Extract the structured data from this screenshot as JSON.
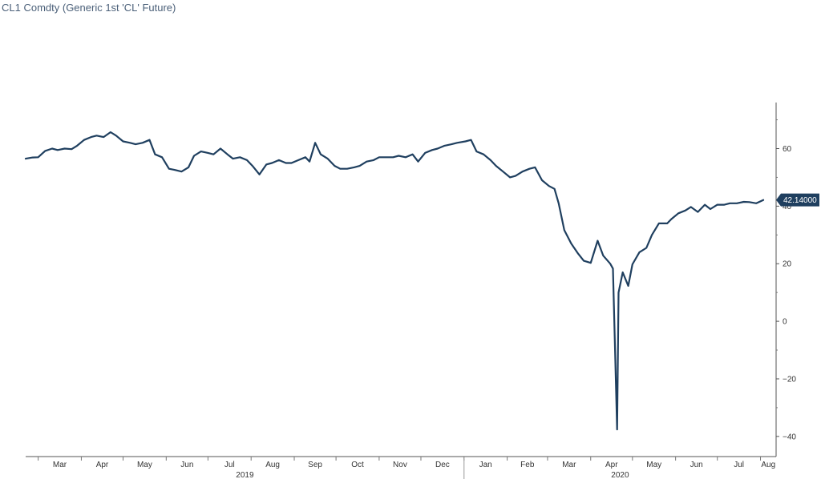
{
  "chart_data": {
    "type": "line",
    "title": "CL1 Comdty (Generic 1st 'CL' Future)",
    "xlabel": "",
    "ylabel": "",
    "ylim": [
      -47,
      76
    ],
    "y_ticks": [
      60,
      40,
      20,
      0,
      -20,
      -40
    ],
    "y_tick_labels": [
      "60",
      "40",
      "20",
      "0",
      "−20",
      "−40"
    ],
    "month_labels": [
      "Mar",
      "Apr",
      "May",
      "Jun",
      "Jul",
      "Aug",
      "Sep",
      "Oct",
      "Nov",
      "Dec",
      "Jan",
      "Feb",
      "Mar",
      "Apr",
      "May",
      "Jun",
      "Jul",
      "Aug"
    ],
    "year_labels": [
      "2019",
      "2020"
    ],
    "last_value_label": "42.14000",
    "legend": "none",
    "grid": false,
    "line_color": "#1f3f5f",
    "series": [
      {
        "x": [
          "2019-02-20",
          "2019-02-25",
          "2019-03-01",
          "2019-03-06",
          "2019-03-11",
          "2019-03-15",
          "2019-03-20",
          "2019-03-25",
          "2019-03-29",
          "2019-04-03",
          "2019-04-08",
          "2019-04-12",
          "2019-04-17",
          "2019-04-22",
          "2019-04-26",
          "2019-05-01",
          "2019-05-06",
          "2019-05-10",
          "2019-05-15",
          "2019-05-20",
          "2019-05-24",
          "2019-05-29",
          "2019-06-03",
          "2019-06-07",
          "2019-06-12",
          "2019-06-17",
          "2019-06-21",
          "2019-06-26",
          "2019-07-01",
          "2019-07-05",
          "2019-07-10",
          "2019-07-15",
          "2019-07-19",
          "2019-07-24",
          "2019-07-29",
          "2019-08-02",
          "2019-08-07",
          "2019-08-12",
          "2019-08-16",
          "2019-08-21",
          "2019-08-26",
          "2019-08-30",
          "2019-09-04",
          "2019-09-09",
          "2019-09-12",
          "2019-09-16",
          "2019-09-20",
          "2019-09-25",
          "2019-09-30",
          "2019-10-04",
          "2019-10-09",
          "2019-10-14",
          "2019-10-18",
          "2019-10-23",
          "2019-10-28",
          "2019-11-01",
          "2019-11-06",
          "2019-11-11",
          "2019-11-15",
          "2019-11-20",
          "2019-11-25",
          "2019-11-29",
          "2019-12-04",
          "2019-12-09",
          "2019-12-13",
          "2019-12-18",
          "2019-12-23",
          "2019-12-27",
          "2020-01-02",
          "2020-01-06",
          "2020-01-10",
          "2020-01-15",
          "2020-01-20",
          "2020-01-24",
          "2020-01-29",
          "2020-02-03",
          "2020-02-07",
          "2020-02-12",
          "2020-02-17",
          "2020-02-21",
          "2020-02-26",
          "2020-03-02",
          "2020-03-06",
          "2020-03-09",
          "2020-03-13",
          "2020-03-18",
          "2020-03-23",
          "2020-03-27",
          "2020-04-01",
          "2020-04-06",
          "2020-04-10",
          "2020-04-15",
          "2020-04-17",
          "2020-04-20",
          "2020-04-21",
          "2020-04-24",
          "2020-04-28",
          "2020-05-01",
          "2020-05-06",
          "2020-05-11",
          "2020-05-15",
          "2020-05-20",
          "2020-05-26",
          "2020-05-29",
          "2020-06-03",
          "2020-06-08",
          "2020-06-12",
          "2020-06-17",
          "2020-06-22",
          "2020-06-26",
          "2020-07-01",
          "2020-07-06",
          "2020-07-10",
          "2020-07-15",
          "2020-07-20",
          "2020-07-24",
          "2020-07-29",
          "2020-08-03"
        ],
        "y": [
          56.5,
          56.9,
          57.0,
          59.2,
          60.0,
          59.5,
          60.0,
          59.8,
          61.0,
          63.0,
          64.0,
          64.5,
          64.0,
          65.7,
          64.5,
          62.5,
          62.0,
          61.5,
          62.0,
          63.0,
          58.0,
          57.0,
          53.0,
          52.6,
          52.0,
          53.5,
          57.5,
          59.0,
          58.5,
          58.0,
          60.0,
          58.0,
          56.5,
          57.0,
          56.0,
          54.0,
          51.0,
          54.5,
          55.0,
          56.0,
          55.0,
          55.0,
          56.0,
          57.0,
          55.5,
          62.0,
          58.0,
          56.5,
          54.0,
          53.0,
          53.0,
          53.5,
          54.0,
          55.5,
          56.0,
          57.0,
          57.0,
          57.0,
          57.5,
          57.0,
          58.0,
          55.5,
          58.5,
          59.5,
          60.0,
          61.0,
          61.5,
          62.0,
          62.5,
          63.0,
          59.0,
          58.0,
          56.0,
          54.0,
          52.0,
          50.0,
          50.5,
          52.0,
          53.0,
          53.5,
          49.0,
          47.0,
          46.0,
          41.0,
          31.7,
          27.0,
          23.5,
          21.0,
          20.3,
          28.0,
          22.8,
          20.0,
          18.3,
          -37.6,
          10.0,
          17.0,
          12.3,
          19.8,
          24.0,
          25.5,
          30.0,
          34.0,
          34.0,
          35.5,
          37.5,
          38.5,
          39.7,
          38.0,
          40.5,
          39.0,
          40.5,
          40.5,
          41.0,
          41.0,
          41.5,
          41.4,
          41.0,
          42.14
        ]
      }
    ]
  }
}
